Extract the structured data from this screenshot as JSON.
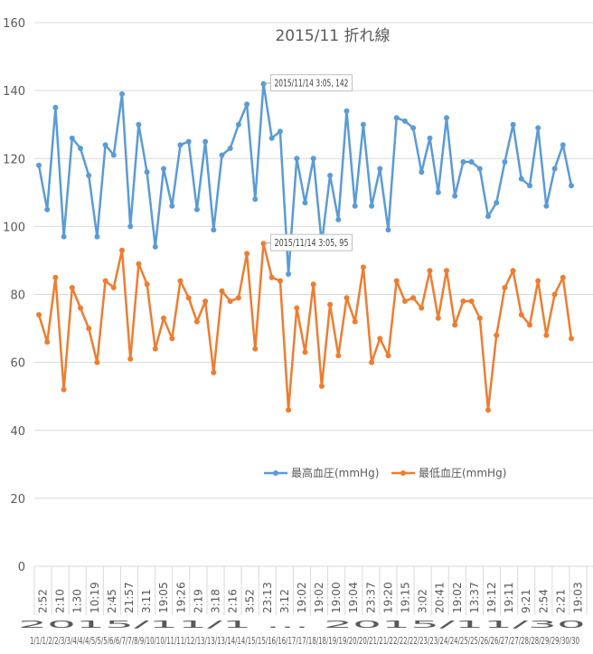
{
  "chart_data": {
    "type": "line",
    "title": "2015/11  折れ線",
    "ylim": [
      0,
      160
    ],
    "yticks": [
      "0",
      "20",
      "40",
      "60",
      "80",
      "100",
      "120",
      "140",
      "160"
    ],
    "grid": true,
    "legend_position": "bottom",
    "xticks_time": [
      "2:52",
      "2:10",
      "1:30",
      "10:19",
      "2:45",
      "21:57",
      "3:11",
      "19:05",
      "19:26",
      "2:19",
      "3:18",
      "2:16",
      "3:52",
      "23:13",
      "3:12",
      "19:02",
      "19:02",
      "19:00",
      "19:04",
      "23:37",
      "19:20",
      "19:15",
      "3:02",
      "20:41",
      "19:02",
      "13:37",
      "19:12",
      "19:11",
      "9:21",
      "2:54",
      "2:21",
      "19:03"
    ],
    "xticks_date_row1": "2015/11/1 ... 2015/11/30",
    "xticks_date_row2": "1/1/1/2/2/3/3/4/4/4/5/5/5/6/6/7/7/8/9/10/10/11/11/12/13/13/13/14/14/15/15/16/16/17/17/18/18/19/19/20/20/21/21/22/22/22/23/23/24/24/25/25/26/26/27/27/28/28/29/29/30/30",
    "series": [
      {
        "name": "最高血圧(mmHg)",
        "color": "#5b9bd5",
        "values": [
          118,
          105,
          135,
          97,
          126,
          123,
          115,
          97,
          124,
          121,
          139,
          100,
          130,
          116,
          94,
          117,
          106,
          124,
          125,
          105,
          125,
          99,
          121,
          123,
          130,
          136,
          108,
          142,
          126,
          128,
          86,
          120,
          107,
          120,
          95,
          115,
          102,
          134,
          106,
          130,
          106,
          117,
          99,
          132,
          131,
          129,
          116,
          126,
          110,
          132,
          109,
          119,
          119,
          117,
          103,
          107,
          119,
          130,
          114,
          112,
          129,
          106,
          117,
          124,
          112
        ]
      },
      {
        "name": "最低血圧(mmHg)",
        "color": "#ed7d31",
        "values": [
          74,
          66,
          85,
          52,
          82,
          76,
          70,
          60,
          84,
          82,
          93,
          61,
          89,
          83,
          64,
          73,
          67,
          84,
          79,
          72,
          78,
          57,
          81,
          78,
          79,
          92,
          64,
          95,
          85,
          84,
          46,
          76,
          63,
          83,
          53,
          77,
          62,
          79,
          72,
          88,
          60,
          67,
          62,
          84,
          78,
          79,
          76,
          87,
          73,
          87,
          71,
          78,
          78,
          73,
          46,
          68,
          82,
          87,
          74,
          71,
          84,
          68,
          80,
          85,
          67
        ]
      }
    ],
    "annotations": [
      {
        "text": "2015/11/14 3:05, 142",
        "series": 0,
        "index": 27
      },
      {
        "text": "2015/11/14 3:05, 95",
        "series": 1,
        "index": 27
      }
    ]
  }
}
